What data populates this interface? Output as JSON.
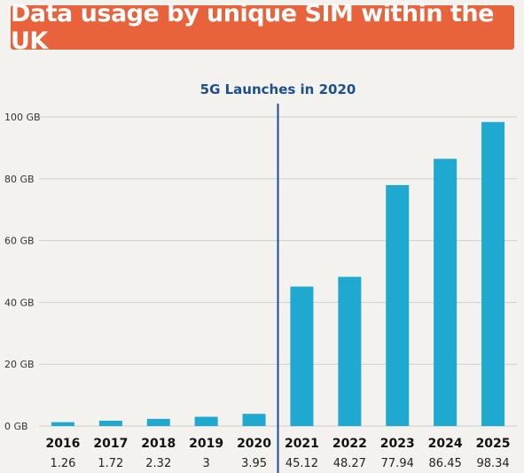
{
  "title": "Data usage by unique SIM within the UK",
  "colors": {
    "banner": "#e8623b",
    "bar": "#1fa8d0",
    "annotation": "#1c4f8c",
    "grid": "#cfcfcf"
  },
  "chart_data": {
    "type": "bar",
    "title": "Data usage by unique SIM within the UK",
    "categories": [
      "2016",
      "2017",
      "2018",
      "2019",
      "2020",
      "2021",
      "2022",
      "2023",
      "2024",
      "2025"
    ],
    "values": [
      1.26,
      1.72,
      2.32,
      3,
      3.95,
      45.12,
      48.27,
      77.94,
      86.45,
      98.34
    ],
    "value_labels": [
      "1.26",
      "1.72",
      "2.32",
      "3",
      "3.95",
      "45.12",
      "48.27",
      "77.94",
      "86.45",
      "98.34"
    ],
    "ylim": [
      0,
      100
    ],
    "yticks": [
      0,
      20,
      40,
      60,
      80,
      100
    ],
    "ytick_labels": [
      "0 GB",
      "20 GB",
      "40 GB",
      "60 GB",
      "80 GB",
      "100 GB"
    ],
    "grid": true,
    "annotation": {
      "label": "5G Launches in 2020",
      "position": "between 2020 and 2021"
    }
  }
}
